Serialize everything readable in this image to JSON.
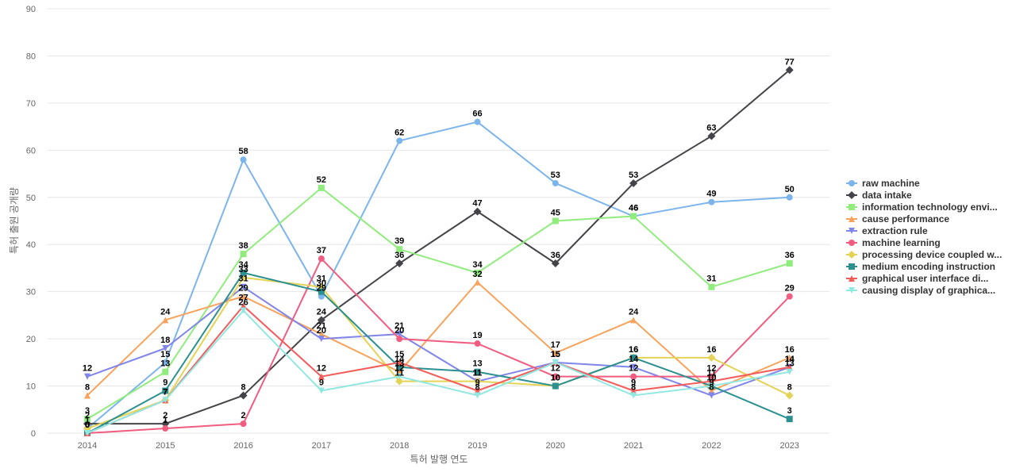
{
  "chart_data": {
    "type": "line",
    "title": "",
    "xlabel": "특허 발행 연도",
    "ylabel": "특허 출원 공개량",
    "ylim": [
      0,
      90
    ],
    "yticks": [
      0,
      10,
      20,
      30,
      40,
      50,
      60,
      70,
      80,
      90
    ],
    "grid": true,
    "legend_position": "right",
    "data_labels": true,
    "categories": [
      "2014",
      "2015",
      "2016",
      "2017",
      "2018",
      "2019",
      "2020",
      "2021",
      "2022",
      "2023"
    ],
    "series": [
      {
        "name": "raw machine",
        "color": "#7cb5ec",
        "marker": "circle",
        "values": [
          1,
          15,
          58,
          29,
          62,
          66,
          53,
          46,
          49,
          50
        ]
      },
      {
        "name": "data intake",
        "color": "#434348",
        "marker": "diamond",
        "values": [
          2,
          2,
          8,
          24,
          36,
          47,
          36,
          53,
          63,
          77
        ]
      },
      {
        "name": "information technology envi...",
        "color": "#90ed7d",
        "marker": "square",
        "values": [
          3,
          13,
          38,
          52,
          39,
          34,
          45,
          46,
          31,
          36
        ]
      },
      {
        "name": "cause performance",
        "color": "#f7a35c",
        "marker": "triangle",
        "values": [
          8,
          24,
          29,
          21,
          13,
          32,
          17,
          24,
          9,
          16
        ]
      },
      {
        "name": "extraction rule",
        "color": "#8085e9",
        "marker": "triangle-down",
        "values": [
          12,
          18,
          31,
          20,
          21,
          11,
          15,
          14,
          8,
          14
        ]
      },
      {
        "name": "machine learning",
        "color": "#f15c80",
        "marker": "circle",
        "values": [
          0,
          1,
          2,
          37,
          20,
          19,
          12,
          12,
          12,
          29
        ]
      },
      {
        "name": "processing device coupled w...",
        "color": "#e4d354",
        "marker": "diamond",
        "values": [
          1,
          7,
          33,
          31,
          11,
          11,
          10,
          16,
          16,
          8
        ]
      },
      {
        "name": "medium encoding instruction",
        "color": "#2b908f",
        "marker": "square",
        "values": [
          0,
          9,
          34,
          30,
          14,
          13,
          10,
          16,
          10,
          3
        ]
      },
      {
        "name": "graphical user interface di...",
        "color": "#f45b5b",
        "marker": "triangle",
        "values": [
          0,
          7,
          27,
          12,
          15,
          9,
          15,
          9,
          11,
          14
        ]
      },
      {
        "name": "causing display of graphica...",
        "color": "#91e8e1",
        "marker": "triangle-down",
        "values": [
          0,
          7,
          26,
          9,
          12,
          8,
          15,
          8,
          10,
          13
        ]
      }
    ]
  }
}
